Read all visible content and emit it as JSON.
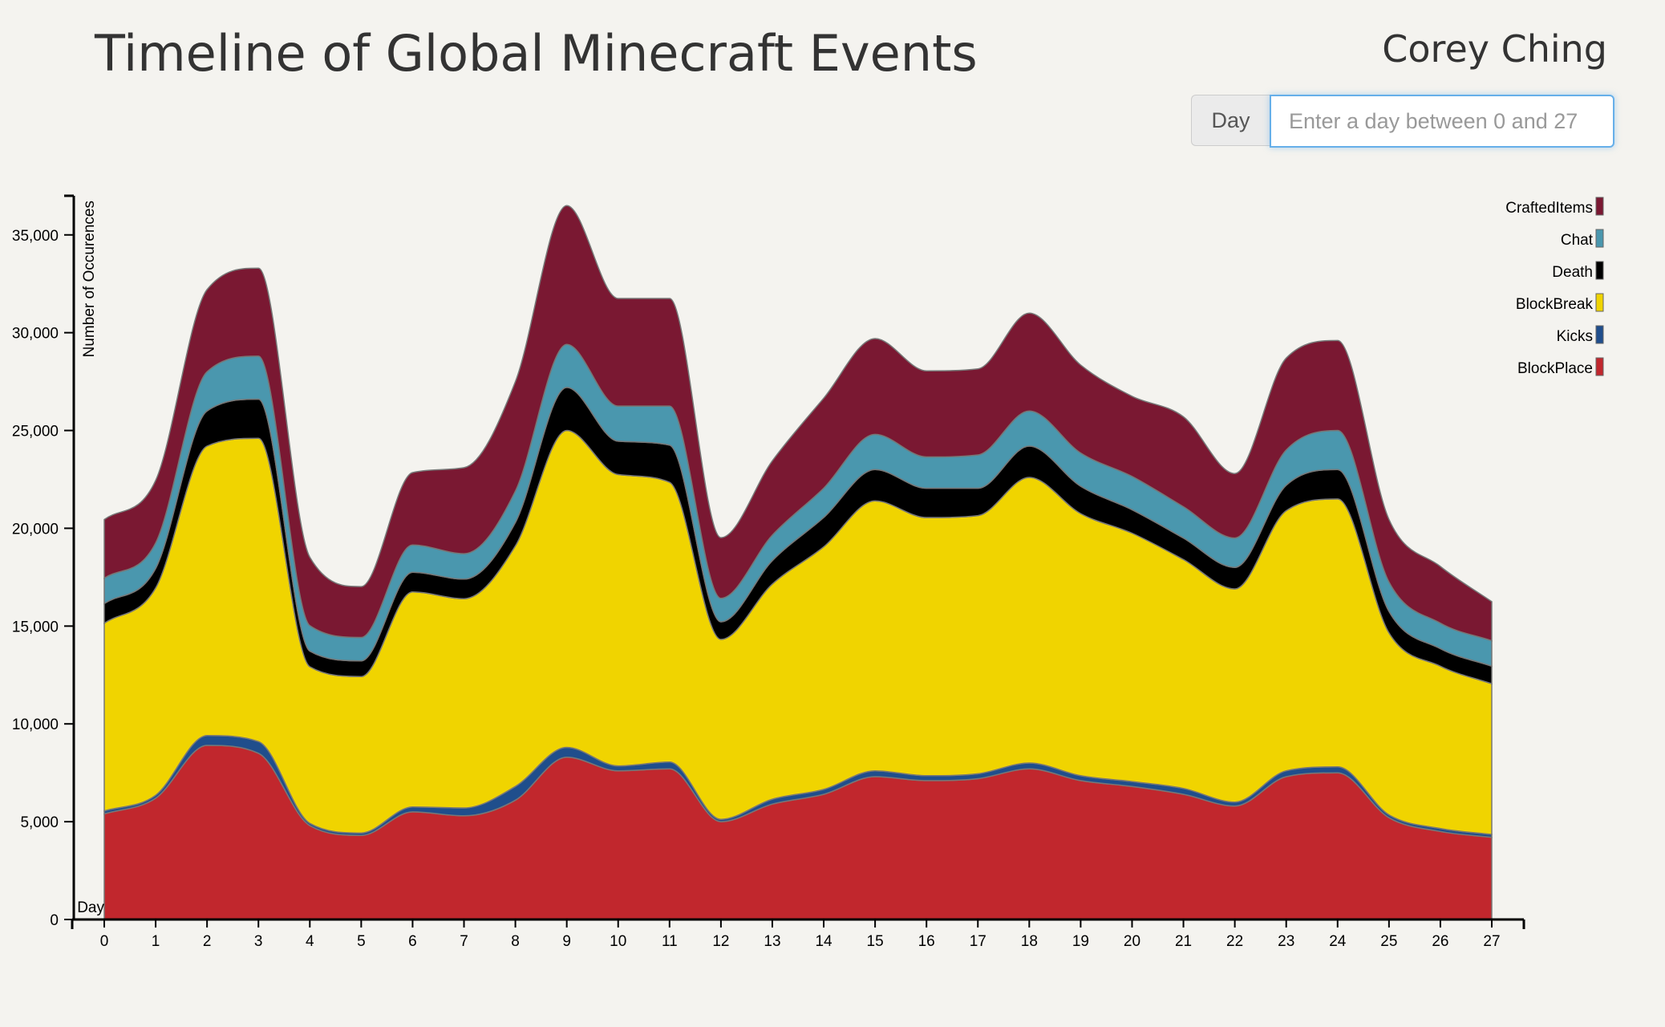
{
  "header": {
    "title": "Timeline of Global Minecraft Events",
    "author": "Corey Ching"
  },
  "day_picker": {
    "label": "Day",
    "placeholder": "Enter a day between 0 and 27",
    "value": ""
  },
  "chart_data": {
    "type": "area",
    "stacked": true,
    "title": "",
    "xlabel": "Day",
    "ylabel": "Number of Occurences",
    "x": [
      0,
      1,
      2,
      3,
      4,
      5,
      6,
      7,
      8,
      9,
      10,
      11,
      12,
      13,
      14,
      15,
      16,
      17,
      18,
      19,
      20,
      21,
      22,
      23,
      24,
      25,
      26,
      27
    ],
    "xlim": [
      0,
      27
    ],
    "ylim": [
      0,
      37000
    ],
    "y_ticks": [
      0,
      5000,
      10000,
      15000,
      20000,
      25000,
      30000,
      35000
    ],
    "y_tick_labels": [
      "0",
      "5,000",
      "10,000",
      "15,000",
      "20,000",
      "25,000",
      "30,000",
      "35,000"
    ],
    "legend_position": "top-right",
    "grid": false,
    "series": [
      {
        "name": "BlockPlace",
        "color": "#c1272d",
        "values": [
          5400,
          6200,
          8900,
          8500,
          4800,
          4300,
          5500,
          5300,
          6100,
          8300,
          7600,
          7700,
          5000,
          5900,
          6400,
          7300,
          7100,
          7200,
          7700,
          7100,
          6800,
          6400,
          5800,
          7300,
          7500,
          5200,
          4500,
          4200
        ]
      },
      {
        "name": "Kicks",
        "color": "#1f4e8c",
        "values": [
          150,
          150,
          500,
          600,
          120,
          120,
          250,
          400,
          700,
          500,
          250,
          350,
          120,
          250,
          250,
          300,
          250,
          250,
          300,
          250,
          250,
          300,
          200,
          300,
          300,
          150,
          150,
          150
        ]
      },
      {
        "name": "BlockBreak",
        "color": "#f0d400",
        "values": [
          9600,
          10600,
          14800,
          15500,
          8000,
          8000,
          11000,
          10700,
          12300,
          16200,
          14900,
          14300,
          9200,
          11000,
          12400,
          13800,
          13200,
          13200,
          14600,
          13400,
          12700,
          11700,
          10900,
          13300,
          13700,
          9300,
          8300,
          7700
        ]
      },
      {
        "name": "Death",
        "color": "#000000",
        "values": [
          1000,
          1000,
          1800,
          2000,
          800,
          800,
          1000,
          1000,
          1200,
          2200,
          1700,
          1900,
          900,
          1200,
          1500,
          1600,
          1500,
          1400,
          1600,
          1400,
          1200,
          1100,
          1100,
          1300,
          1500,
          1100,
          900,
          900
        ]
      },
      {
        "name": "Chat",
        "color": "#4a97ae",
        "values": [
          1300,
          1300,
          2000,
          2200,
          1300,
          1200,
          1400,
          1300,
          1600,
          2200,
          1800,
          2000,
          1200,
          1300,
          1500,
          1800,
          1600,
          1700,
          1800,
          1700,
          1700,
          1600,
          1500,
          1800,
          2000,
          1500,
          1300,
          1300
        ]
      },
      {
        "name": "CraftedItems",
        "color": "#7a1832",
        "values": [
          3000,
          3200,
          4200,
          4500,
          3500,
          2600,
          3700,
          4400,
          5600,
          7100,
          5500,
          5500,
          3100,
          3800,
          4600,
          4900,
          4400,
          4400,
          5000,
          4500,
          4100,
          4600,
          3300,
          4700,
          4600,
          3200,
          2900,
          2000
        ]
      }
    ]
  }
}
